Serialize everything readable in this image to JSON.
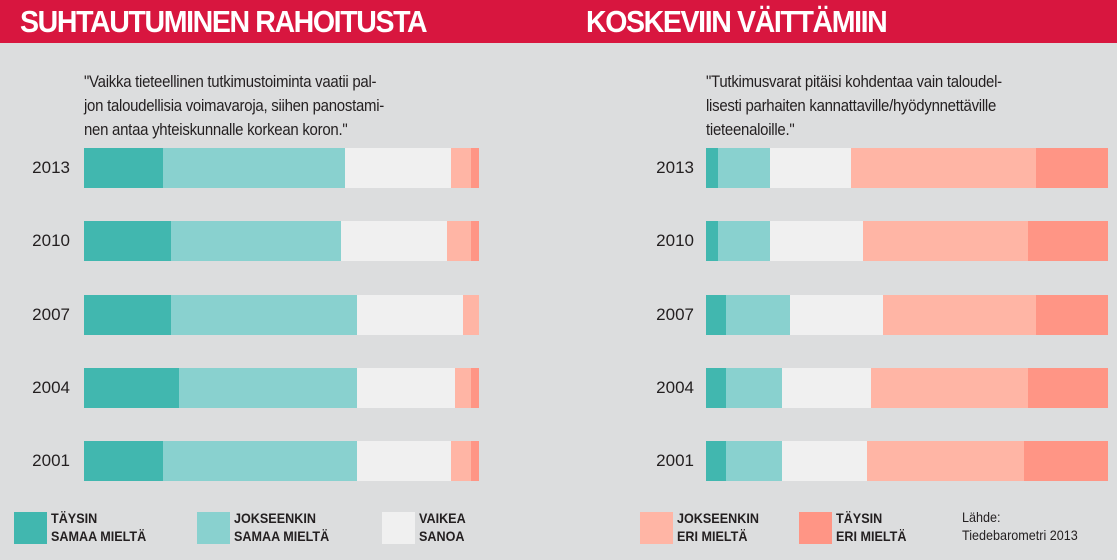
{
  "chart_data": [
    {
      "type": "bar",
      "orientation": "horizontal",
      "stacked": true,
      "title": "SUHTAUTUMINEN RAHOITUSTA",
      "statement": [
        "\"Vaikka tieteellinen tutkimustoiminta vaatii pal-",
        "jon taloudellisia voimavaroja, siihen panostami-",
        "nen antaa yhteiskunnalle  korkean koron.\""
      ],
      "categories": [
        "2013",
        "2010",
        "2007",
        "2004",
        "2001"
      ],
      "unit": "%",
      "xlim": [
        0,
        100
      ],
      "series": [
        {
          "name": "TÄYSIN SAMAA MIELTÄ",
          "values": [
            20,
            22,
            22,
            24,
            20
          ]
        },
        {
          "name": "JOKSEENKIN SAMAA MIELTÄ",
          "values": [
            46,
            43,
            47,
            45,
            49
          ]
        },
        {
          "name": "VAIKEA SANOA",
          "values": [
            27,
            27,
            27,
            25,
            24
          ]
        },
        {
          "name": "JOKSEENKIN ERI MIELTÄ",
          "values": [
            5,
            6,
            4,
            4,
            5
          ]
        },
        {
          "name": "TÄYSIN ERI MIELTÄ",
          "values": [
            2,
            2,
            0,
            2,
            2
          ]
        }
      ]
    },
    {
      "type": "bar",
      "orientation": "horizontal",
      "stacked": true,
      "title": "KOSKEVIIN VÄITTÄMIIN",
      "statement": [
        "\"Tutkimusvarat pitäisi kohdentaa vain taloudel-",
        "lisesti  parhaiten  kannattaville/hyödynnettäville",
        "tieteenaloille.\""
      ],
      "categories": [
        "2013",
        "2010",
        "2007",
        "2004",
        "2001"
      ],
      "unit": "%",
      "xlim": [
        0,
        100
      ],
      "series": [
        {
          "name": "TÄYSIN SAMAA MIELTÄ",
          "values": [
            3,
            3,
            5,
            5,
            5
          ]
        },
        {
          "name": "JOKSEENKIN SAMAA MIELTÄ",
          "values": [
            13,
            13,
            16,
            14,
            14
          ]
        },
        {
          "name": "VAIKEA SANOA",
          "values": [
            20,
            23,
            23,
            22,
            21
          ]
        },
        {
          "name": "JOKSEENKIN ERI MIELTÄ",
          "values": [
            46,
            41,
            38,
            39,
            39
          ]
        },
        {
          "name": "TÄYSIN ERI MIELTÄ",
          "values": [
            18,
            20,
            18,
            20,
            21
          ]
        }
      ]
    }
  ],
  "legend": [
    {
      "line1": "TÄYSIN",
      "line2": "SAMAA MIELTÄ",
      "color": "#41b7af"
    },
    {
      "line1": "JOKSEENKIN",
      "line2": "SAMAA MIELTÄ",
      "color": "#89d1cf"
    },
    {
      "line1": "VAIKEA",
      "line2": "SANOA",
      "color": "#f0f0f0"
    },
    {
      "line1": "JOKSEENKIN",
      "line2": "ERI MIELTÄ",
      "color": "#ffb5a5"
    },
    {
      "line1": "TÄYSIN",
      "line2": "ERI MIELTÄ",
      "color": "#ff9585"
    }
  ],
  "source": {
    "line1": "Lähde:",
    "line2": "Tiedebarometri 2013"
  }
}
